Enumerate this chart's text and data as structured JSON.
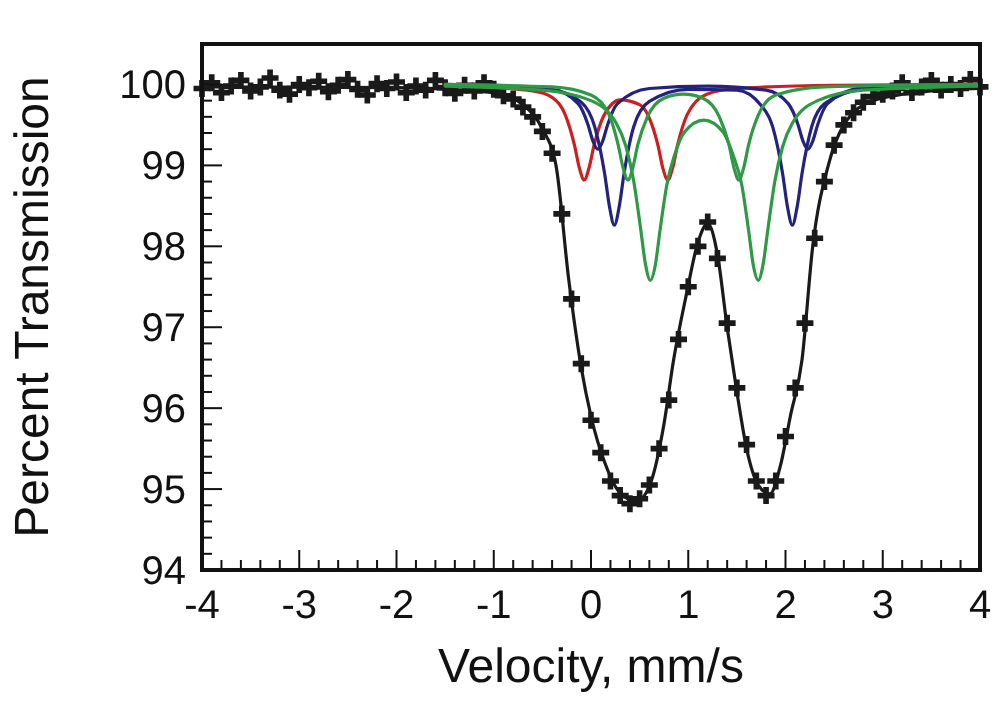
{
  "chart_data": {
    "type": "line",
    "xlabel": "Velocity, mm/s",
    "ylabel": "Percent Transmission",
    "xlim": [
      -4,
      4
    ],
    "ylim": [
      94,
      100.5
    ],
    "xticks": [
      -4,
      {
        "value": -3.8,
        "label": null
      },
      {
        "value": -3.6,
        "label": null
      },
      {
        "value": -3.4,
        "label": null
      },
      {
        "value": -3.2,
        "label": null
      },
      -3,
      {
        "value": -2.8,
        "label": null
      },
      {
        "value": -2.6,
        "label": null
      },
      {
        "value": -2.4,
        "label": null
      },
      {
        "value": -2.2,
        "label": null
      },
      -2,
      {
        "value": -1.8,
        "label": null
      },
      {
        "value": -1.6,
        "label": null
      },
      {
        "value": -1.4,
        "label": null
      },
      {
        "value": -1.2,
        "label": null
      },
      -1,
      {
        "value": -0.8,
        "label": null
      },
      {
        "value": -0.6,
        "label": null
      },
      {
        "value": -0.4,
        "label": null
      },
      {
        "value": -0.2,
        "label": null
      },
      0,
      {
        "value": 0.2,
        "label": null
      },
      {
        "value": 0.4,
        "label": null
      },
      {
        "value": 0.6,
        "label": null
      },
      {
        "value": 0.8,
        "label": null
      },
      1,
      {
        "value": 1.2,
        "label": null
      },
      {
        "value": 1.4,
        "label": null
      },
      {
        "value": 1.6,
        "label": null
      },
      {
        "value": 1.8,
        "label": null
      },
      2,
      {
        "value": 2.2,
        "label": null
      },
      {
        "value": 2.4,
        "label": null
      },
      {
        "value": 2.6,
        "label": null
      },
      {
        "value": 2.8,
        "label": null
      },
      3,
      {
        "value": 3.2,
        "label": null
      },
      {
        "value": 3.4,
        "label": null
      },
      {
        "value": 3.6,
        "label": null
      },
      {
        "value": 3.8,
        "label": null
      },
      4
    ],
    "yticks": [
      94,
      {
        "value": 94.2,
        "label": null
      },
      {
        "value": 94.4,
        "label": null
      },
      {
        "value": 94.6,
        "label": null
      },
      {
        "value": 94.8,
        "label": null
      },
      95,
      {
        "value": 95.2,
        "label": null
      },
      {
        "value": 95.4,
        "label": null
      },
      {
        "value": 95.6,
        "label": null
      },
      {
        "value": 95.8,
        "label": null
      },
      96,
      {
        "value": 96.2,
        "label": null
      },
      {
        "value": 96.4,
        "label": null
      },
      {
        "value": 96.6,
        "label": null
      },
      {
        "value": 96.8,
        "label": null
      },
      97,
      {
        "value": 97.2,
        "label": null
      },
      {
        "value": 97.4,
        "label": null
      },
      {
        "value": 97.6,
        "label": null
      },
      {
        "value": 97.8,
        "label": null
      },
      98,
      {
        "value": 98.2,
        "label": null
      },
      {
        "value": 98.4,
        "label": null
      },
      {
        "value": 98.6,
        "label": null
      },
      {
        "value": 98.8,
        "label": null
      },
      99,
      {
        "value": 99.2,
        "label": null
      },
      {
        "value": 99.4,
        "label": null
      },
      {
        "value": 99.6,
        "label": null
      },
      {
        "value": 99.8,
        "label": null
      },
      100
    ],
    "grid": false,
    "line_style": "solid",
    "series": [
      {
        "type": "scatter",
        "marker": "cross",
        "color": "#1a1a1a",
        "x": [
          -4,
          -3.9,
          -3.8,
          -3.7,
          -3.6,
          -3.5,
          -3.4,
          -3.3,
          -3.2,
          -3.1,
          -3,
          -2.9,
          -2.8,
          -2.7,
          -2.6,
          -2.5,
          -2.4,
          -2.3,
          -2.2,
          -2.1,
          -2,
          -1.9,
          -1.8,
          -1.7,
          -1.6,
          -1.5,
          -1.4,
          -1.3,
          -1.2,
          -1.1,
          -1,
          -0.9,
          -0.8,
          -0.7,
          -0.6,
          -0.5,
          -0.4,
          -0.3,
          -0.2,
          -0.1,
          0,
          0.1,
          0.2,
          0.3,
          0.4,
          0.5,
          0.6,
          0.7,
          0.8,
          0.9,
          1,
          1.1,
          1.2,
          1.3,
          1.4,
          1.5,
          1.6,
          1.7,
          1.8,
          1.9,
          2,
          2.1,
          2.2,
          2.3,
          2.4,
          2.5,
          2.6,
          2.7,
          2.8,
          2.9,
          3,
          3.1,
          3.2,
          3.3,
          3.4,
          3.5,
          3.6,
          3.7,
          3.8,
          3.9,
          4
        ],
        "values": [
          99.95,
          100.02,
          99.9,
          99.98,
          100.05,
          99.92,
          99.97,
          100.08,
          99.93,
          99.88,
          100.0,
          99.96,
          100.04,
          99.91,
          99.99,
          100.06,
          99.94,
          99.87,
          100.01,
          99.95,
          100.03,
          99.9,
          99.98,
          99.93,
          100.05,
          99.96,
          99.89,
          99.99,
          99.92,
          100.02,
          99.94,
          99.86,
          99.82,
          99.72,
          99.6,
          99.42,
          99.15,
          98.4,
          97.35,
          96.55,
          95.85,
          95.45,
          95.1,
          94.92,
          94.82,
          94.88,
          95.05,
          95.5,
          96.1,
          96.85,
          97.5,
          98.0,
          98.3,
          97.85,
          97.05,
          96.25,
          95.55,
          95.1,
          94.92,
          95.1,
          95.65,
          96.25,
          97.05,
          98.1,
          98.8,
          99.25,
          99.5,
          99.65,
          99.78,
          99.85,
          99.88,
          99.92,
          100.02,
          99.9,
          99.97,
          100.05,
          99.93,
          100.0,
          99.95,
          100.06,
          99.97
        ]
      },
      {
        "color": "#1a1a1a",
        "x": [
          -4,
          -2,
          -1,
          -0.7,
          -0.5,
          -0.36,
          -0.23,
          -0.1,
          0,
          0.15,
          0.3,
          0.47,
          0.62,
          0.75,
          0.85,
          0.98,
          1.1,
          1.2,
          1.3,
          1.4,
          1.5,
          1.6,
          1.72,
          1.84,
          1.95,
          2.05,
          2.17,
          2.28,
          2.44,
          2.6,
          2.9,
          3.5,
          4
        ],
        "values": [
          99.97,
          99.96,
          99.9,
          99.75,
          99.45,
          99.0,
          97.6,
          96.5,
          95.9,
          95.3,
          94.95,
          94.85,
          95.1,
          95.8,
          96.6,
          97.4,
          98.05,
          98.28,
          97.9,
          97.0,
          96.2,
          95.5,
          95.05,
          94.94,
          95.3,
          95.9,
          96.6,
          98.0,
          99.0,
          99.5,
          99.8,
          99.92,
          99.95
        ]
      },
      {
        "color": "#cc1f1f",
        "x": [
          -1.5,
          -0.6,
          -0.4,
          -0.27,
          -0.17,
          -0.12,
          -0.07,
          -0.02,
          0.03,
          0.13,
          0.3,
          0.5,
          0.59,
          0.69,
          0.74,
          0.79,
          0.84,
          0.89,
          0.99,
          1.19,
          1.5,
          2.5,
          4
        ],
        "values": [
          99.99,
          99.92,
          99.84,
          99.64,
          99.25,
          98.97,
          98.82,
          98.97,
          99.24,
          99.61,
          99.81,
          99.75,
          99.61,
          99.24,
          98.96,
          98.82,
          98.97,
          99.25,
          99.63,
          99.88,
          99.95,
          99.99,
          100
        ]
      },
      {
        "color": "#23237f",
        "x": [
          -1.5,
          -0.4,
          -0.1,
          0.04,
          0.14,
          0.19,
          0.24,
          0.29,
          0.34,
          0.44,
          0.6,
          1.0,
          1.5,
          1.75,
          1.87,
          1.97,
          2.02,
          2.07,
          2.12,
          2.17,
          2.27,
          2.4,
          2.8,
          4
        ],
        "values": [
          99.99,
          99.93,
          99.78,
          99.47,
          98.9,
          98.49,
          98.26,
          98.49,
          98.9,
          99.48,
          99.79,
          99.94,
          99.93,
          99.74,
          99.47,
          98.9,
          98.49,
          98.26,
          98.49,
          98.9,
          99.48,
          99.76,
          99.94,
          100
        ]
      },
      {
        "color": "#23237f",
        "x": [
          -1.5,
          -0.4,
          -0.13,
          -0.03,
          0.02,
          0.07,
          0.12,
          0.17,
          0.27,
          0.6,
          1.2,
          1.8,
          2.03,
          2.13,
          2.18,
          2.23,
          2.28,
          2.33,
          2.43,
          2.8,
          4
        ],
        "values": [
          100,
          99.94,
          99.76,
          99.5,
          99.3,
          99.2,
          99.3,
          99.5,
          99.76,
          99.95,
          99.98,
          99.93,
          99.76,
          99.5,
          99.3,
          99.2,
          99.3,
          99.5,
          99.76,
          99.96,
          100
        ]
      },
      {
        "color": "#2e9a45",
        "x": [
          -1.5,
          -0.5,
          0,
          0.26,
          0.36,
          0.44,
          0.51,
          0.56,
          0.61,
          0.66,
          0.71,
          0.78,
          0.86,
          0.96,
          1.16,
          1.36,
          1.46,
          1.55,
          1.62,
          1.67,
          1.72,
          1.77,
          1.82,
          1.89,
          1.97,
          2.07,
          2.33,
          2.8,
          4
        ],
        "values": [
          99.98,
          99.93,
          99.8,
          99.52,
          99.23,
          98.8,
          98.22,
          97.78,
          97.58,
          97.76,
          98.2,
          98.76,
          99.13,
          99.41,
          99.56,
          99.41,
          99.13,
          98.76,
          98.2,
          97.76,
          97.58,
          97.78,
          98.22,
          98.8,
          99.23,
          99.52,
          99.8,
          99.93,
          99.98
        ]
      },
      {
        "color": "#2e9a45",
        "x": [
          -1.5,
          -0.4,
          0,
          0.18,
          0.28,
          0.33,
          0.38,
          0.43,
          0.48,
          0.58,
          0.75,
          0.95,
          1.15,
          1.32,
          1.42,
          1.47,
          1.52,
          1.57,
          1.62,
          1.72,
          1.9,
          2.4,
          4
        ],
        "values": [
          100,
          99.97,
          99.87,
          99.64,
          99.25,
          98.97,
          98.82,
          98.97,
          99.25,
          99.6,
          99.83,
          99.88,
          99.83,
          99.6,
          99.25,
          98.97,
          98.82,
          98.97,
          99.25,
          99.62,
          99.87,
          99.97,
          100
        ]
      }
    ]
  }
}
